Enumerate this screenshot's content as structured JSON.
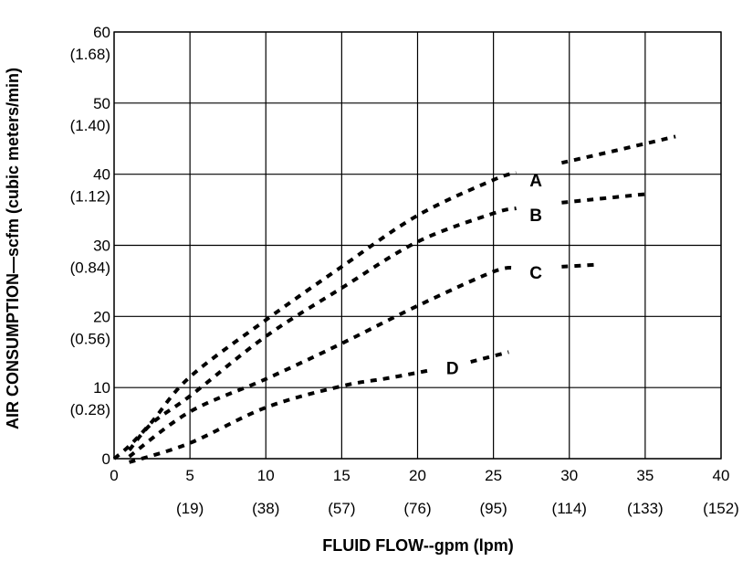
{
  "chart_data": {
    "type": "line",
    "xlabel": "FLUID FLOW--gpm (lpm)",
    "ylabel": "AIR CONSUMPTION—scfm (cubic meters/min)",
    "xlim": [
      0,
      40
    ],
    "ylim": [
      0,
      60
    ],
    "grid": true,
    "x_ticks": [
      {
        "value": 0,
        "label": "0"
      },
      {
        "value": 5,
        "label": "5"
      },
      {
        "value": 10,
        "label": "10"
      },
      {
        "value": 15,
        "label": "15"
      },
      {
        "value": 20,
        "label": "20"
      },
      {
        "value": 25,
        "label": "25"
      },
      {
        "value": 30,
        "label": "30"
      },
      {
        "value": 35,
        "label": "35"
      },
      {
        "value": 40,
        "label": "40"
      }
    ],
    "x_secondary_ticks": [
      {
        "value": 5,
        "label": "(19)"
      },
      {
        "value": 10,
        "label": "(38)"
      },
      {
        "value": 15,
        "label": "(57)"
      },
      {
        "value": 20,
        "label": "(76)"
      },
      {
        "value": 25,
        "label": "(95)"
      },
      {
        "value": 30,
        "label": "(114)"
      },
      {
        "value": 35,
        "label": "(133)"
      },
      {
        "value": 40,
        "label": "(152)"
      }
    ],
    "y_ticks": [
      {
        "value": 0,
        "label": "0"
      },
      {
        "value": 10,
        "label": "10"
      },
      {
        "value": 20,
        "label": "20"
      },
      {
        "value": 30,
        "label": "30"
      },
      {
        "value": 40,
        "label": "40"
      },
      {
        "value": 50,
        "label": "50"
      },
      {
        "value": 60,
        "label": "60"
      }
    ],
    "y_secondary_ticks": [
      {
        "value": 10,
        "label": "(0.28)"
      },
      {
        "value": 20,
        "label": "(0.56)"
      },
      {
        "value": 30,
        "label": "(0.84)"
      },
      {
        "value": 40,
        "label": "(1.12)"
      },
      {
        "value": 50,
        "label": "(1.40)"
      },
      {
        "value": 60,
        "label": "(1.68)"
      }
    ],
    "series": [
      {
        "name": "A",
        "label_at": {
          "x": 27.8,
          "y": 39.2
        },
        "segments": [
          [
            [
              0,
              0
            ],
            [
              1,
              1.8
            ],
            [
              2.5,
              5.2
            ],
            [
              5,
              11.5
            ],
            [
              10,
              19.5
            ],
            [
              15,
              27
            ],
            [
              20,
              34.2
            ],
            [
              25,
              39.2
            ],
            [
              26.5,
              40.2
            ]
          ],
          [
            [
              29.5,
              41.6
            ],
            [
              33,
              43.3
            ],
            [
              37,
              45.3
            ]
          ]
        ]
      },
      {
        "name": "B",
        "label_at": {
          "x": 27.8,
          "y": 34.3
        },
        "segments": [
          [
            [
              1,
              1.2
            ],
            [
              2.5,
              5
            ],
            [
              5,
              8.8
            ],
            [
              10,
              17.2
            ],
            [
              15,
              24
            ],
            [
              20,
              30.5
            ],
            [
              25,
              34.5
            ],
            [
              26.5,
              35.2
            ]
          ],
          [
            [
              29.5,
              36
            ],
            [
              35,
              37.2
            ]
          ]
        ]
      },
      {
        "name": "C",
        "label_at": {
          "x": 27.8,
          "y": 26.2
        },
        "segments": [
          [
            [
              1,
              0.3
            ],
            [
              5,
              6.6
            ],
            [
              10,
              11.2
            ],
            [
              15,
              16.2
            ],
            [
              20,
              21.5
            ],
            [
              25,
              26.3
            ],
            [
              26.5,
              26.8
            ]
          ],
          [
            [
              29.5,
              27
            ],
            [
              32,
              27.3
            ]
          ]
        ]
      },
      {
        "name": "D",
        "label_at": {
          "x": 22.3,
          "y": 12.8
        },
        "segments": [
          [
            [
              1,
              -0.5
            ],
            [
              5,
              2.2
            ],
            [
              10,
              7.2
            ],
            [
              15,
              10.2
            ],
            [
              18,
              11.3
            ],
            [
              21,
              12.5
            ]
          ],
          [
            [
              23.5,
              13.6
            ],
            [
              26,
              15
            ]
          ]
        ]
      }
    ]
  }
}
